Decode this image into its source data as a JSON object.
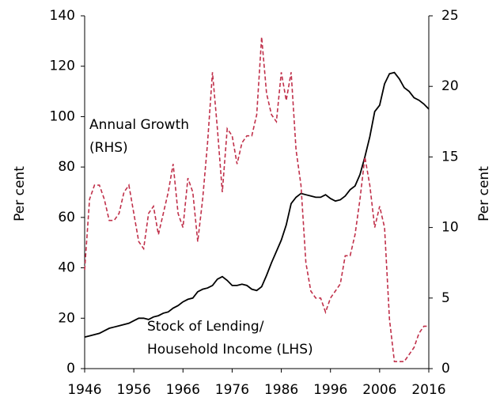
{
  "chart_data": {
    "type": "line",
    "x": [
      1946,
      1947,
      1948,
      1949,
      1950,
      1951,
      1952,
      1953,
      1954,
      1955,
      1956,
      1957,
      1958,
      1959,
      1960,
      1961,
      1962,
      1963,
      1964,
      1965,
      1966,
      1967,
      1968,
      1969,
      1970,
      1971,
      1972,
      1973,
      1974,
      1975,
      1976,
      1977,
      1978,
      1979,
      1980,
      1981,
      1982,
      1983,
      1984,
      1985,
      1986,
      1987,
      1988,
      1989,
      1990,
      1991,
      1992,
      1993,
      1994,
      1995,
      1996,
      1997,
      1998,
      1999,
      2000,
      2001,
      2002,
      2003,
      2004,
      2005,
      2006,
      2007,
      2008,
      2009,
      2010,
      2011,
      2012,
      2013,
      2014,
      2015,
      2016
    ],
    "xlim": [
      1946,
      2016
    ],
    "xticks": [
      1946,
      1956,
      1966,
      1976,
      1986,
      1996,
      2006,
      2016
    ],
    "ylim": [
      0,
      140
    ],
    "yticks": [
      0,
      20,
      40,
      60,
      80,
      100,
      120,
      140
    ],
    "y2lim": [
      0,
      25
    ],
    "y2ticks": [
      0,
      5,
      10,
      15,
      20,
      25
    ],
    "ylabel": "Per cent",
    "y2label": "Per cent",
    "series": [
      {
        "name": "Stock of Lending/Household Income (LHS)",
        "color": "#000000",
        "dashed": false,
        "values": [
          12.5,
          13,
          13.5,
          14,
          15,
          16,
          16.5,
          17,
          17.5,
          18,
          19,
          20,
          20,
          19.5,
          20.5,
          21,
          22,
          22.5,
          24,
          25,
          26.5,
          27.5,
          28,
          30.5,
          31.5,
          32,
          33,
          35.5,
          36.5,
          35,
          33,
          33,
          33.5,
          33,
          31.5,
          31,
          32.5,
          37,
          42,
          46.5,
          51,
          57,
          65.5,
          68,
          69.5,
          69,
          68.5,
          68,
          68,
          69,
          67.5,
          66.5,
          67,
          68.5,
          71,
          72.5,
          77,
          84,
          92,
          102,
          104.5,
          113,
          117,
          117.5,
          115,
          111.5,
          110,
          107.5,
          106.5,
          105,
          103
        ]
      },
      {
        "name": "Annual Growth (RHS)",
        "color": "#c0304a",
        "dashed": true,
        "axis": "y2",
        "values": [
          7,
          12,
          13,
          13,
          12,
          10.5,
          10.5,
          11,
          12.5,
          13,
          11,
          9,
          8.5,
          11,
          11.5,
          9.5,
          11,
          12.5,
          14.5,
          11,
          10,
          13.5,
          12.5,
          9,
          12,
          16,
          21,
          17,
          12.5,
          17,
          16.5,
          14.5,
          16,
          16.5,
          16.5,
          18,
          23.5,
          19.5,
          18,
          17.5,
          21,
          19,
          21,
          15.5,
          13,
          7.5,
          5.5,
          5,
          5,
          4,
          5,
          5.5,
          6,
          8,
          8,
          9.5,
          12,
          15,
          13,
          10,
          11.5,
          10,
          3.5,
          0.5,
          0.5,
          0.5,
          1,
          1.5,
          2.5,
          3,
          3
        ]
      }
    ],
    "annotations": [
      {
        "lines": [
          "Annual Growth",
          "(RHS)"
        ]
      },
      {
        "lines": [
          "Stock of Lending/",
          "Household Income (LHS)"
        ]
      }
    ]
  }
}
